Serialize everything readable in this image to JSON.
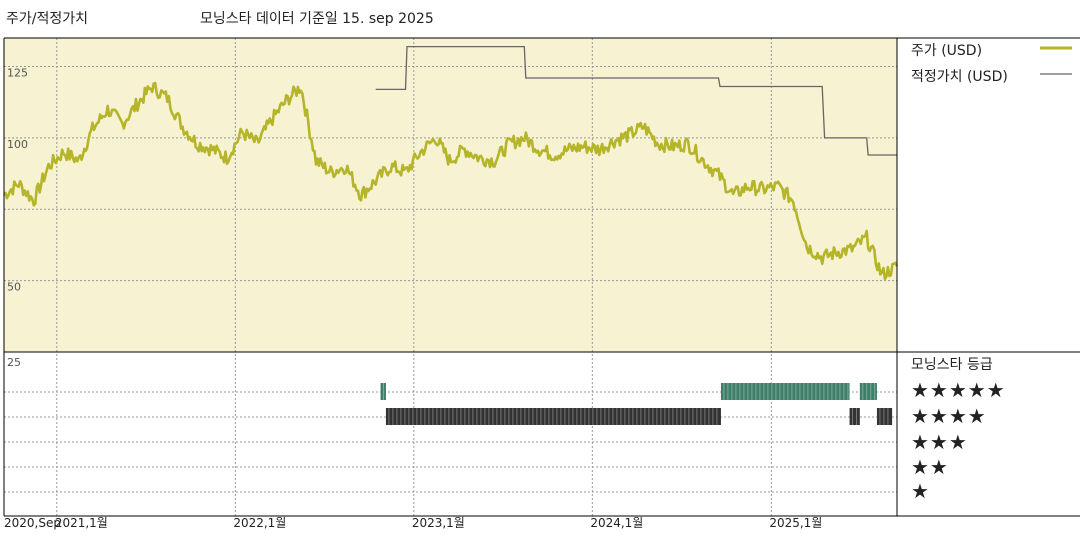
{
  "header": {
    "title_left": "주가/적정가치",
    "title_main": "모닝스타 데이터 기준일 15. sep 2025"
  },
  "legend": {
    "price_label": "주가 (USD)",
    "fair_value_label": "적정가치 (USD)",
    "price_color": "#b5b52a",
    "fair_value_color": "#666666"
  },
  "rating": {
    "title": "모닝스타 등급",
    "stars": [
      "★★★★★",
      "★★★★",
      "★★★",
      "★★",
      "★"
    ],
    "five_star_color": "#3f7f6a",
    "four_star_color": "#333333"
  },
  "colors": {
    "plot_bg": "#f7f2d2",
    "grid": "#999999"
  },
  "chart_data": {
    "type": "line",
    "y_ticks": [
      "125",
      "100",
      "50"
    ],
    "y_tick_values": [
      125,
      100,
      50
    ],
    "ylim": [
      25,
      135
    ],
    "lower_panel_tick": "25",
    "x_ticks": [
      {
        "label": "2020,Sep",
        "date": "2020-09-15"
      },
      {
        "label": "2021,1월",
        "date": "2021-01-01"
      },
      {
        "label": "2022,1월",
        "date": "2022-01-01"
      },
      {
        "label": "2023,1월",
        "date": "2023-01-01"
      },
      {
        "label": "2024,1월",
        "date": "2024-01-01"
      },
      {
        "label": "2025,1월",
        "date": "2025-01-01"
      }
    ],
    "x_range": [
      "2020-09-15",
      "2025-09-15"
    ],
    "series": [
      {
        "name": "주가 (USD)",
        "points": [
          [
            "2020-09-15",
            80
          ],
          [
            "2020-10-15",
            84
          ],
          [
            "2020-11-15",
            78
          ],
          [
            "2020-12-15",
            90
          ],
          [
            "2021-01-15",
            95
          ],
          [
            "2021-02-15",
            92
          ],
          [
            "2021-03-15",
            103
          ],
          [
            "2021-04-15",
            110
          ],
          [
            "2021-05-15",
            105
          ],
          [
            "2021-06-15",
            112
          ],
          [
            "2021-07-15",
            118
          ],
          [
            "2021-08-15",
            114
          ],
          [
            "2021-09-15",
            104
          ],
          [
            "2021-10-15",
            98
          ],
          [
            "2021-11-15",
            96
          ],
          [
            "2021-12-15",
            93
          ],
          [
            "2022-01-15",
            102
          ],
          [
            "2022-02-15",
            98
          ],
          [
            "2022-03-15",
            106
          ],
          [
            "2022-04-15",
            113
          ],
          [
            "2022-05-15",
            118
          ],
          [
            "2022-06-15",
            92
          ],
          [
            "2022-07-15",
            88
          ],
          [
            "2022-08-15",
            90
          ],
          [
            "2022-09-15",
            80
          ],
          [
            "2022-10-15",
            85
          ],
          [
            "2022-11-15",
            90
          ],
          [
            "2022-12-15",
            88
          ],
          [
            "2023-01-15",
            95
          ],
          [
            "2023-02-15",
            100
          ],
          [
            "2023-03-15",
            92
          ],
          [
            "2023-04-15",
            96
          ],
          [
            "2023-05-15",
            93
          ],
          [
            "2023-06-15",
            92
          ],
          [
            "2023-07-15",
            98
          ],
          [
            "2023-08-15",
            100
          ],
          [
            "2023-09-15",
            96
          ],
          [
            "2023-10-15",
            94
          ],
          [
            "2023-11-15",
            96
          ],
          [
            "2023-12-15",
            97
          ],
          [
            "2024-01-15",
            96
          ],
          [
            "2024-02-15",
            99
          ],
          [
            "2024-03-15",
            101
          ],
          [
            "2024-04-15",
            104
          ],
          [
            "2024-05-15",
            98
          ],
          [
            "2024-06-15",
            97
          ],
          [
            "2024-07-15",
            98
          ],
          [
            "2024-08-15",
            92
          ],
          [
            "2024-09-15",
            87
          ],
          [
            "2024-10-15",
            80
          ],
          [
            "2024-11-15",
            83
          ],
          [
            "2024-12-15",
            82
          ],
          [
            "2025-01-15",
            83
          ],
          [
            "2025-02-15",
            78
          ],
          [
            "2025-03-15",
            62
          ],
          [
            "2025-04-15",
            58
          ],
          [
            "2025-05-15",
            60
          ],
          [
            "2025-06-15",
            61
          ],
          [
            "2025-07-15",
            65
          ],
          [
            "2025-08-15",
            52
          ],
          [
            "2025-09-15",
            55
          ]
        ]
      },
      {
        "name": "적정가치 (USD)",
        "step": true,
        "points": [
          [
            "2022-10-15",
            117
          ],
          [
            "2022-12-15",
            117
          ],
          [
            "2022-12-18",
            132
          ],
          [
            "2023-08-15",
            132
          ],
          [
            "2023-08-18",
            121
          ],
          [
            "2024-09-15",
            121
          ],
          [
            "2024-09-18",
            118
          ],
          [
            "2025-04-15",
            118
          ],
          [
            "2025-04-20",
            100
          ],
          [
            "2025-07-15",
            100
          ],
          [
            "2025-07-18",
            94
          ],
          [
            "2025-09-15",
            94
          ]
        ]
      }
    ],
    "rating_periods": {
      "five_star": [
        [
          "2022-10-25",
          "2022-11-05"
        ],
        [
          "2024-09-20",
          "2025-06-10"
        ],
        [
          "2025-07-01",
          "2025-08-05"
        ]
      ],
      "four_star": [
        [
          "2022-11-05",
          "2024-09-20"
        ],
        [
          "2025-06-10",
          "2025-07-01"
        ],
        [
          "2025-08-05",
          "2025-09-05"
        ]
      ]
    }
  }
}
